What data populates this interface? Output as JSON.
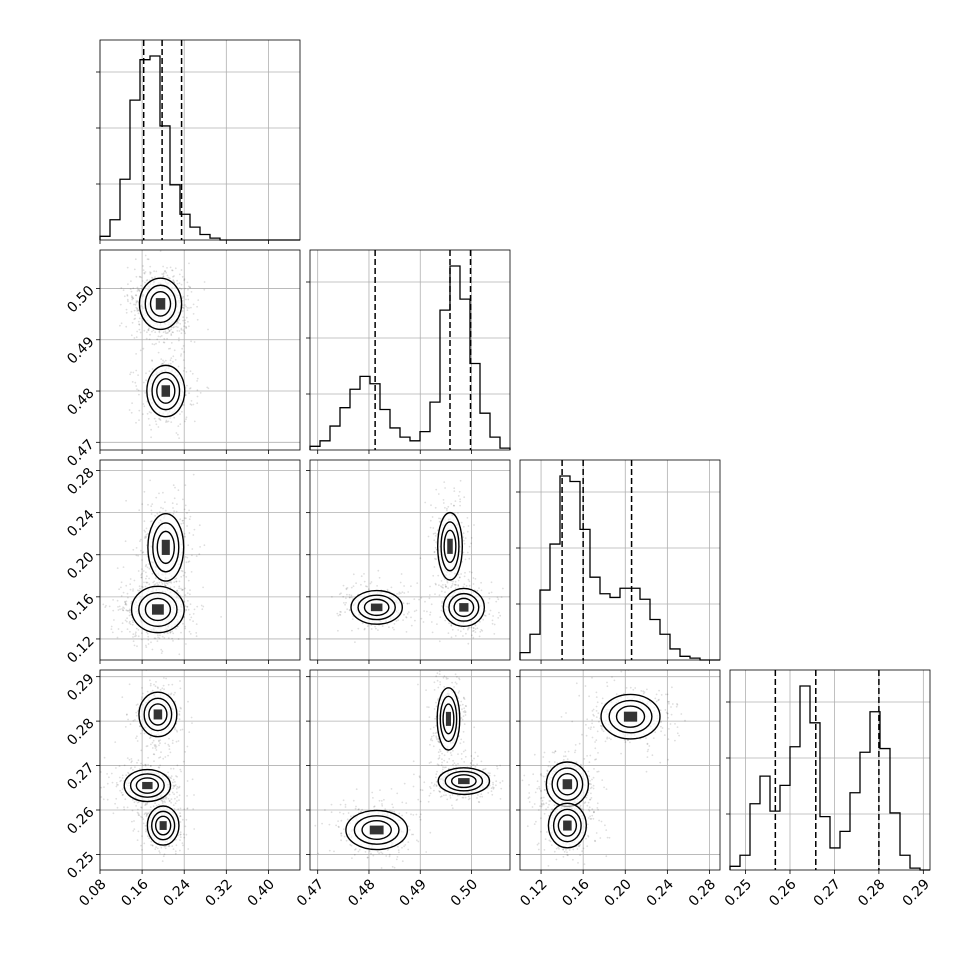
{
  "chart_data": {
    "type": "corner",
    "grid": true,
    "parameters": [
      {
        "id": "p0",
        "range": [
          0.08,
          0.46
        ],
        "ticks": [
          0.08,
          0.16,
          0.24,
          0.32,
          0.4
        ],
        "tick_labels": [
          "0.08",
          "0.16",
          "0.24",
          "0.32",
          "0.40"
        ],
        "quantiles": [
          0.163,
          0.198,
          0.235
        ],
        "hist_edges": [
          0.08,
          0.099,
          0.118,
          0.137,
          0.156,
          0.175,
          0.194,
          0.213,
          0.232,
          0.251,
          0.27,
          0.289,
          0.308,
          0.327,
          0.346,
          0.365,
          0.384,
          0.403,
          0.422,
          0.441,
          0.46
        ],
        "hist_counts": [
          0.02,
          0.11,
          0.33,
          0.76,
          0.98,
          1.0,
          0.62,
          0.3,
          0.14,
          0.07,
          0.03,
          0.01,
          0,
          0,
          0,
          0,
          0,
          0,
          0,
          0
        ]
      },
      {
        "id": "p1",
        "range": [
          0.4685,
          0.5075
        ],
        "ticks": [
          0.47,
          0.48,
          0.49,
          0.5
        ],
        "tick_labels": [
          "0.47",
          "0.48",
          "0.49",
          "0.50"
        ],
        "quantiles": [
          0.4812,
          0.4958,
          0.4998
        ],
        "hist_edges": [
          0.4685,
          0.47045,
          0.4724,
          0.47435,
          0.4763,
          0.47825,
          0.4802,
          0.48215,
          0.4841,
          0.48605,
          0.488,
          0.48995,
          0.4919,
          0.49385,
          0.4958,
          0.49775,
          0.4997,
          0.50165,
          0.5036,
          0.50555,
          0.5075
        ],
        "hist_counts": [
          0.02,
          0.05,
          0.13,
          0.23,
          0.33,
          0.4,
          0.36,
          0.22,
          0.12,
          0.07,
          0.05,
          0.1,
          0.26,
          0.76,
          1.0,
          0.82,
          0.47,
          0.2,
          0.07,
          0.01
        ]
      },
      {
        "id": "p2",
        "range": [
          0.1,
          0.29
        ],
        "ticks": [
          0.12,
          0.16,
          0.2,
          0.24,
          0.28
        ],
        "tick_labels": [
          "0.12",
          "0.16",
          "0.20",
          "0.24",
          "0.28"
        ],
        "quantiles": [
          0.14,
          0.16,
          0.206
        ],
        "hist_edges": [
          0.1,
          0.1095,
          0.119,
          0.1285,
          0.138,
          0.1475,
          0.157,
          0.1665,
          0.176,
          0.1855,
          0.195,
          0.2045,
          0.214,
          0.2235,
          0.233,
          0.2425,
          0.252,
          0.2615,
          0.271,
          0.2805,
          0.29
        ],
        "hist_counts": [
          0.04,
          0.14,
          0.38,
          0.63,
          1.0,
          0.97,
          0.71,
          0.45,
          0.36,
          0.34,
          0.39,
          0.39,
          0.33,
          0.22,
          0.14,
          0.06,
          0.02,
          0.01,
          0,
          0
        ]
      },
      {
        "id": "p3",
        "range": [
          0.2465,
          0.2915
        ],
        "ticks": [
          0.25,
          0.26,
          0.27,
          0.28,
          0.29
        ],
        "tick_labels": [
          "0.25",
          "0.26",
          "0.27",
          "0.28",
          "0.29"
        ],
        "quantiles": [
          0.2567,
          0.2658,
          0.28
        ],
        "hist_edges": [
          0.2465,
          0.24875,
          0.251,
          0.25325,
          0.2555,
          0.25775,
          0.26,
          0.26225,
          0.2645,
          0.26675,
          0.269,
          0.27125,
          0.2735,
          0.27575,
          0.278,
          0.28025,
          0.2825,
          0.28475,
          0.287,
          0.28925,
          0.2915
        ],
        "hist_counts": [
          0.02,
          0.08,
          0.36,
          0.51,
          0.32,
          0.46,
          0.67,
          1.0,
          0.8,
          0.29,
          0.12,
          0.21,
          0.42,
          0.64,
          0.86,
          0.66,
          0.31,
          0.08,
          0.01,
          0
        ]
      }
    ],
    "pairs": [
      {
        "x": 0,
        "y": 1,
        "modes": [
          {
            "center": [
              0.195,
              0.497
            ],
            "spread": [
              0.02,
              0.0025
            ],
            "weight": 0.66
          },
          {
            "center": [
              0.205,
              0.48
            ],
            "spread": [
              0.018,
              0.0025
            ],
            "weight": 0.34
          }
        ]
      },
      {
        "x": 0,
        "y": 2,
        "modes": [
          {
            "center": [
              0.19,
              0.148
            ],
            "spread": [
              0.025,
              0.011
            ],
            "weight": 0.62
          },
          {
            "center": [
              0.205,
              0.207
            ],
            "spread": [
              0.017,
              0.016
            ],
            "weight": 0.38
          }
        ]
      },
      {
        "x": 1,
        "y": 2,
        "modes": [
          {
            "center": [
              0.4815,
              0.15
            ],
            "spread": [
              0.0025,
              0.008
            ],
            "weight": 0.34
          },
          {
            "center": [
              0.4958,
              0.208
            ],
            "spread": [
              0.0012,
              0.016
            ],
            "weight": 0.33
          },
          {
            "center": [
              0.4985,
              0.15
            ],
            "spread": [
              0.002,
              0.009
            ],
            "weight": 0.33
          }
        ]
      },
      {
        "x": 0,
        "y": 3,
        "modes": [
          {
            "center": [
              0.19,
              0.2815
            ],
            "spread": [
              0.018,
              0.0025
            ],
            "weight": 0.3
          },
          {
            "center": [
              0.17,
              0.2655
            ],
            "spread": [
              0.022,
              0.0018
            ],
            "weight": 0.4
          },
          {
            "center": [
              0.2,
              0.2565
            ],
            "spread": [
              0.015,
              0.0022
            ],
            "weight": 0.3
          }
        ]
      },
      {
        "x": 1,
        "y": 3,
        "modes": [
          {
            "center": [
              0.4955,
              0.2805
            ],
            "spread": [
              0.0011,
              0.0035
            ],
            "weight": 0.33
          },
          {
            "center": [
              0.4985,
              0.2665
            ],
            "spread": [
              0.0025,
              0.0015
            ],
            "weight": 0.34
          },
          {
            "center": [
              0.4815,
              0.2555
            ],
            "spread": [
              0.003,
              0.0022
            ],
            "weight": 0.33
          }
        ]
      },
      {
        "x": 2,
        "y": 3,
        "modes": [
          {
            "center": [
              0.205,
              0.281
            ],
            "spread": [
              0.014,
              0.0025
            ],
            "weight": 0.36
          },
          {
            "center": [
              0.145,
              0.2658
            ],
            "spread": [
              0.01,
              0.0025
            ],
            "weight": 0.34
          },
          {
            "center": [
              0.145,
              0.2565
            ],
            "spread": [
              0.009,
              0.0025
            ],
            "weight": 0.3
          }
        ]
      }
    ]
  }
}
